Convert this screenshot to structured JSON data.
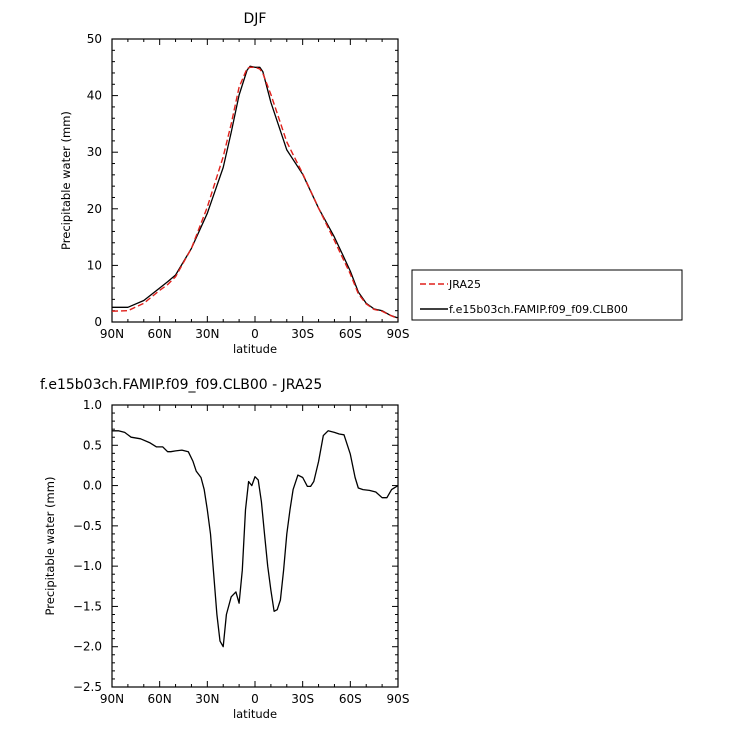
{
  "chart_data": [
    {
      "type": "line",
      "title": "DJF",
      "xlabel": "latitude",
      "ylabel": "Precipitable water (mm)",
      "xlim": [
        90,
        -90
      ],
      "ylim": [
        0,
        50
      ],
      "xticks": [
        90,
        60,
        30,
        0,
        -30,
        -60,
        -90
      ],
      "xtick_labels": [
        "90N",
        "60N",
        "30N",
        "0",
        "30S",
        "60S",
        "90S"
      ],
      "yticks": [
        0,
        10,
        20,
        30,
        40,
        50
      ],
      "ytick_labels": [
        "0",
        "10",
        "20",
        "30",
        "40",
        "50"
      ],
      "grid": false,
      "legend_position": "right",
      "x": [
        90,
        80,
        70,
        60,
        55,
        50,
        40,
        30,
        20,
        15,
        10,
        5,
        3,
        0,
        -3,
        -5,
        -10,
        -20,
        -30,
        -40,
        -50,
        -55,
        -60,
        -65,
        -70,
        -75,
        -80,
        -85,
        -90
      ],
      "series": [
        {
          "name": "JRA25",
          "color": "#e0201b",
          "dash": true,
          "values": [
            1.9,
            2.0,
            3.3,
            5.6,
            6.6,
            8.0,
            13.0,
            20.3,
            29.2,
            35.0,
            41.5,
            44.8,
            45.0,
            45.0,
            44.7,
            43.9,
            40.2,
            31.8,
            26.2,
            20.1,
            14.4,
            11.4,
            8.5,
            5.0,
            3.2,
            2.2,
            1.9,
            1.2,
            0.6
          ]
        },
        {
          "name": "f.e15b03ch.FAMIP.f09_f09.CLB00",
          "color": "#000000",
          "dash": false,
          "values": [
            2.6,
            2.6,
            3.8,
            6.0,
            7.1,
            8.3,
            13.0,
            19.2,
            27.3,
            33.5,
            40.1,
            44.5,
            45.2,
            45.0,
            45.0,
            44.2,
            38.8,
            30.4,
            26.1,
            20.1,
            15.0,
            12.0,
            9.0,
            5.3,
            3.3,
            2.3,
            2.0,
            1.2,
            0.7
          ]
        }
      ]
    },
    {
      "type": "line",
      "title": "f.e15b03ch.FAMIP.f09_f09.CLB00 - JRA25",
      "xlabel": "latitude",
      "ylabel": "Precipitable water (mm)",
      "xlim": [
        90,
        -90
      ],
      "ylim": [
        -2.5,
        1.0
      ],
      "xticks": [
        90,
        60,
        30,
        0,
        -30,
        -60,
        -90
      ],
      "xtick_labels": [
        "90N",
        "60N",
        "30N",
        "0",
        "30S",
        "60S",
        "90S"
      ],
      "yticks": [
        1.0,
        0.5,
        0.0,
        -0.5,
        -1.0,
        -1.5,
        -2.0,
        -2.5
      ],
      "ytick_labels": [
        "1.0",
        "0.5",
        "0.0",
        "−0.5",
        "−1.0",
        "−1.5",
        "−2.0",
        "−2.5"
      ],
      "grid": false,
      "x": [
        90,
        86,
        82,
        78,
        72,
        66,
        62,
        58,
        55,
        53,
        50,
        46,
        42,
        39,
        37,
        34,
        32,
        30,
        28,
        26,
        24,
        22,
        20,
        18,
        15,
        12,
        10,
        8,
        6,
        4,
        2,
        0,
        -2,
        -4,
        -6,
        -8,
        -10,
        -12,
        -14,
        -16,
        -18,
        -20,
        -22,
        -24,
        -27,
        -30,
        -33,
        -35,
        -37,
        -40,
        -43,
        -46,
        -50,
        -53,
        -56,
        -60,
        -63,
        -65,
        -68,
        -72,
        -76,
        -80,
        -83,
        -86,
        -90
      ],
      "series": [
        {
          "name": "",
          "color": "#000000",
          "values": [
            0.68,
            0.68,
            0.66,
            0.6,
            0.58,
            0.53,
            0.48,
            0.48,
            0.42,
            0.42,
            0.43,
            0.44,
            0.42,
            0.3,
            0.18,
            0.1,
            -0.05,
            -0.3,
            -0.6,
            -1.1,
            -1.6,
            -1.93,
            -2.0,
            -1.6,
            -1.38,
            -1.32,
            -1.46,
            -1.05,
            -0.3,
            0.05,
            0.0,
            0.11,
            0.07,
            -0.2,
            -0.6,
            -1.0,
            -1.3,
            -1.56,
            -1.54,
            -1.42,
            -1.05,
            -0.6,
            -0.3,
            -0.05,
            0.13,
            0.1,
            -0.01,
            -0.01,
            0.05,
            0.3,
            0.62,
            0.68,
            0.66,
            0.64,
            0.63,
            0.39,
            0.1,
            -0.03,
            -0.05,
            -0.06,
            -0.08,
            -0.15,
            -0.15,
            -0.05,
            0.0
          ]
        }
      ]
    }
  ]
}
